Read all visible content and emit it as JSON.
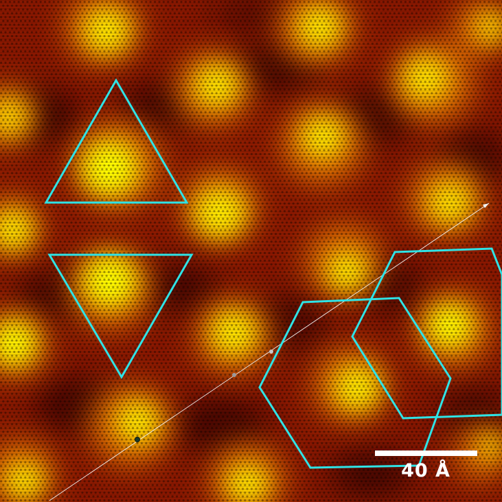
{
  "image": {
    "scale_bar": {
      "label": "40 Å"
    },
    "colors": {
      "background": "#8a1800",
      "bright": "#ffee00",
      "mid": "#e07000",
      "dark": "#2a0400",
      "overlay": "#2fe3e6",
      "line_cut": "#f2f2f2",
      "scale_bar": "#ffffff"
    }
  }
}
